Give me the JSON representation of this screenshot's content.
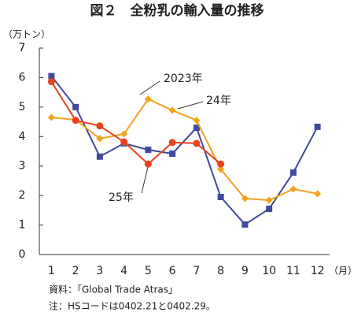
{
  "chart_data": {
    "type": "line",
    "title": "図２　全粉乳の輸入量の推移",
    "y_unit": "（万トン）",
    "x_unit": "（月）",
    "categories": [
      "1",
      "2",
      "3",
      "4",
      "5",
      "6",
      "7",
      "8",
      "9",
      "10",
      "11",
      "12"
    ],
    "series": [
      {
        "name": "2023年",
        "color": "#3f4a9c",
        "marker": "square",
        "values": [
          6.05,
          5.0,
          3.32,
          3.77,
          3.55,
          3.42,
          4.3,
          1.95,
          1.02,
          1.55,
          2.78,
          4.33
        ]
      },
      {
        "name": "24年",
        "color": "#f0a21c",
        "marker": "diamond",
        "values": [
          4.65,
          4.57,
          3.93,
          4.09,
          5.27,
          4.89,
          4.55,
          2.89,
          1.9,
          1.84,
          2.22,
          2.06
        ]
      },
      {
        "name": "25年",
        "color": "#e8431c",
        "marker": "circle",
        "values": [
          5.86,
          4.55,
          4.36,
          3.82,
          3.07,
          3.8,
          3.77,
          3.07,
          null,
          null,
          null,
          null
        ]
      }
    ],
    "ylim": [
      0,
      7
    ],
    "yticks": [
      0,
      1,
      2,
      3,
      4,
      5,
      6,
      7
    ],
    "source": "資料：「Global Trade Atras」",
    "note": "注：HSコードは0402.21と0402.29。"
  }
}
